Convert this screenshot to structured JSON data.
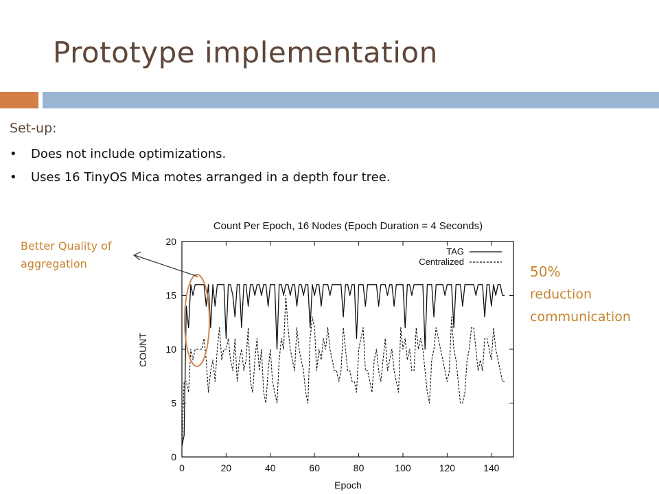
{
  "slide": {
    "title": "Prototype implementation",
    "setup_label": "Set-up:",
    "bullets": [
      "Does not include optimizations.",
      "Uses 16 TinyOS Mica motes arranged in a depth four tree."
    ],
    "callout_left_line1": "Better Quality of",
    "callout_left_line2": "aggregation",
    "callout_right_line1": "50%",
    "callout_right_line2": "reduction",
    "callout_right_line3": "communication",
    "colors": {
      "title": "#5e4638",
      "orange_bar": "#d47f48",
      "blue_bar": "#9ab6d3",
      "callout": "#c6842f",
      "ellipse": "#d08a55"
    }
  },
  "chart_data": {
    "type": "line",
    "title": "Count Per Epoch, 16 Nodes (Epoch Duration = 4 Seconds)",
    "xlabel": "Epoch",
    "ylabel": "COUNT",
    "xlim": [
      0,
      150
    ],
    "ylim": [
      0,
      20
    ],
    "xticks": [
      0,
      20,
      40,
      60,
      80,
      100,
      120,
      140
    ],
    "yticks": [
      0,
      5,
      10,
      15,
      20
    ],
    "legend_position": "top-right",
    "series": [
      {
        "name": "TAG",
        "style": "solid",
        "values": [
          1,
          2,
          14,
          12,
          16,
          15,
          16,
          16,
          16,
          16,
          16,
          14,
          16,
          12,
          16,
          14,
          16,
          16,
          16,
          16,
          11,
          16,
          16,
          15,
          13,
          16,
          16,
          12,
          16,
          16,
          14,
          16,
          16,
          15,
          16,
          16,
          15,
          16,
          16,
          14,
          16,
          16,
          16,
          10,
          16,
          16,
          15,
          16,
          16,
          15,
          16,
          16,
          14,
          16,
          16,
          15,
          16,
          16,
          12,
          16,
          15,
          16,
          16,
          14,
          16,
          16,
          16,
          15,
          16,
          16,
          16,
          16,
          16,
          13,
          16,
          16,
          15,
          16,
          16,
          11,
          16,
          16,
          16,
          14,
          16,
          16,
          16,
          16,
          16,
          14,
          16,
          16,
          16,
          15,
          16,
          16,
          14,
          16,
          16,
          16,
          16,
          12,
          16,
          16,
          15,
          16,
          16,
          16,
          16,
          16,
          10,
          16,
          16,
          16,
          13,
          16,
          16,
          16,
          16,
          15,
          16,
          16,
          16,
          12,
          16,
          16,
          16,
          14,
          16,
          16,
          16,
          16,
          16,
          15,
          16,
          16,
          16,
          13,
          16,
          16,
          14,
          16,
          15,
          16,
          16,
          15,
          15
        ]
      },
      {
        "name": "Centralized",
        "style": "dashed",
        "values": [
          1,
          7,
          7,
          6,
          10,
          9,
          10,
          10,
          10,
          10,
          11,
          9,
          6,
          8,
          9,
          7,
          10,
          12,
          9,
          10,
          10,
          11,
          9,
          8,
          11,
          7,
          9,
          10,
          8,
          9,
          12,
          7,
          6,
          9,
          11,
          8,
          10,
          6,
          5,
          8,
          10,
          7,
          6,
          5,
          9,
          11,
          10,
          15,
          12,
          10,
          9,
          8,
          12,
          10,
          9,
          8,
          6,
          5,
          11,
          13,
          12,
          8,
          10,
          9,
          11,
          10,
          12,
          10,
          9,
          8,
          8,
          7,
          8,
          12,
          10,
          8,
          8,
          7,
          7,
          6,
          10,
          11,
          12,
          8,
          8,
          7,
          6,
          9,
          10,
          8,
          7,
          9,
          11,
          8,
          9,
          10,
          8,
          7,
          6,
          12,
          10,
          11,
          9,
          10,
          8,
          8,
          12,
          10,
          11,
          10,
          8,
          6,
          5,
          9,
          10,
          12,
          11,
          10,
          9,
          8,
          7,
          8,
          13,
          10,
          9,
          7,
          5,
          5,
          6,
          9,
          10,
          12,
          12,
          10,
          8,
          9,
          8,
          11,
          11,
          10,
          9,
          12,
          10,
          9,
          8,
          7,
          7
        ]
      }
    ]
  }
}
